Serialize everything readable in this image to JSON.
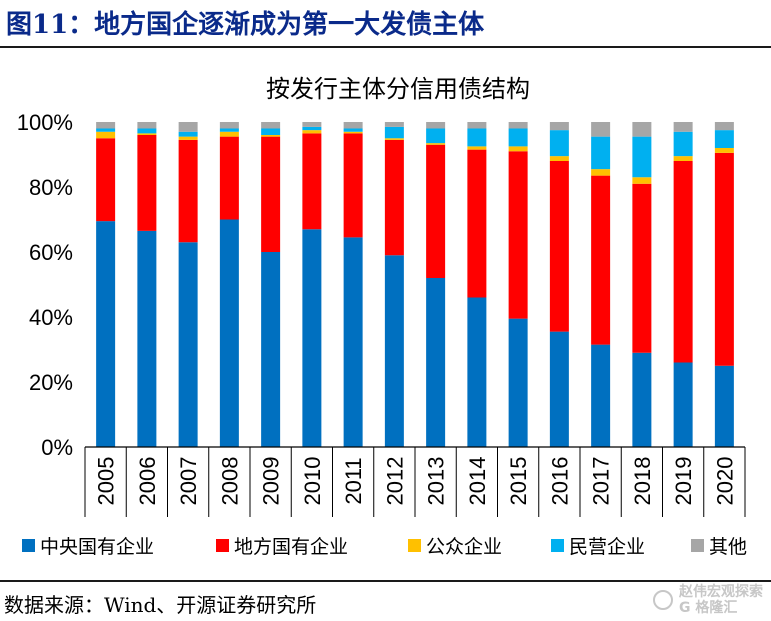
{
  "figure": {
    "label": "图11：地方国企逐渐成为第一大发债主体",
    "source": "数据来源：Wind、开源证券研究所"
  },
  "watermark": {
    "name": "赵伟宏观探索",
    "sub": "G 格隆汇"
  },
  "colors": {
    "central_soe": "#0070c0",
    "local_soe": "#ff0000",
    "public": "#ffc000",
    "private": "#00b0f0",
    "other": "#a6a6a6",
    "title": "#0a2a8a"
  },
  "chart_data": {
    "type": "bar",
    "stacked": true,
    "title": "按发行主体分信用债结构",
    "xlabel": "",
    "ylabel": "",
    "ylim": [
      0,
      100
    ],
    "yticks": [
      "0%",
      "20%",
      "40%",
      "60%",
      "80%",
      "100%"
    ],
    "legend_position": "bottom",
    "categories": [
      "2005",
      "2006",
      "2007",
      "2008",
      "2009",
      "2010",
      "2011",
      "2012",
      "2013",
      "2014",
      "2015",
      "2016",
      "2017",
      "2018",
      "2019",
      "2020"
    ],
    "series": [
      {
        "name": "中央国有企业",
        "color_key": "central_soe",
        "values": [
          69.5,
          66.5,
          63,
          70,
          60,
          67,
          64.5,
          59,
          52,
          46,
          39.5,
          35.5,
          31.5,
          29,
          26,
          25
        ]
      },
      {
        "name": "地方国有企业",
        "color_key": "local_soe",
        "values": [
          25.5,
          29.5,
          31.5,
          25.5,
          35.5,
          29.5,
          32,
          35.5,
          41,
          45.5,
          51.5,
          52.5,
          52,
          52,
          62,
          65.5
        ]
      },
      {
        "name": "公众企业",
        "color_key": "public",
        "values": [
          2,
          0.5,
          1,
          1.5,
          0.5,
          1,
          0.5,
          0.5,
          0.5,
          1,
          1.5,
          1.5,
          2,
          2,
          1.5,
          1.5
        ]
      },
      {
        "name": "民营企业",
        "color_key": "private",
        "values": [
          1,
          1.5,
          1.5,
          1,
          2,
          1,
          1,
          3.5,
          4.5,
          5.5,
          5.5,
          8,
          10,
          12.5,
          7.5,
          5.5
        ]
      },
      {
        "name": "其他",
        "color_key": "other",
        "values": [
          2,
          2,
          3,
          2,
          2,
          1.5,
          2,
          1.5,
          2,
          2,
          2,
          2.5,
          4.5,
          4.5,
          3,
          2.5
        ]
      }
    ]
  }
}
